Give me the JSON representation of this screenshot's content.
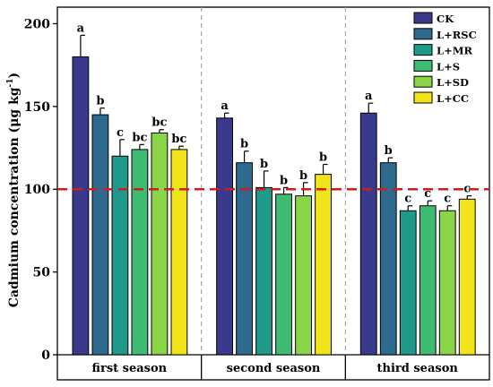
{
  "chart_data": {
    "type": "bar",
    "ylabel": "Cadmium concentration (μg kg",
    "ylabel_sup": "-1",
    "ylabel_close": ")",
    "ylim": [
      0,
      210
    ],
    "yticks": [
      0,
      50,
      100,
      150,
      200
    ],
    "threshold_line": 100,
    "groups": [
      "first season",
      "second season",
      "third season"
    ],
    "series": [
      {
        "name": "CK",
        "color": "#3a3a8c",
        "values": [
          180,
          143,
          146
        ],
        "errors": [
          13,
          3,
          6
        ],
        "letters": [
          "a",
          "a",
          "a"
        ]
      },
      {
        "name": "L+RSC",
        "color": "#2e6a8e",
        "values": [
          145,
          116,
          116
        ],
        "errors": [
          4,
          7,
          3
        ],
        "letters": [
          "b",
          "b",
          "b"
        ]
      },
      {
        "name": "L+MR",
        "color": "#1f9a8a",
        "values": [
          120,
          101,
          87
        ],
        "errors": [
          10,
          10,
          3
        ],
        "letters": [
          "c",
          "b",
          "c"
        ]
      },
      {
        "name": "L+S",
        "color": "#3fbc73",
        "values": [
          124,
          97,
          90
        ],
        "errors": [
          3,
          4,
          3
        ],
        "letters": [
          "bc",
          "b",
          "c"
        ]
      },
      {
        "name": "L+SD",
        "color": "#8ad547",
        "values": [
          134,
          96,
          87
        ],
        "errors": [
          2,
          8,
          3
        ],
        "letters": [
          "bc",
          "b",
          "c"
        ]
      },
      {
        "name": "L+CC",
        "color": "#f2e41a",
        "values": [
          124,
          109,
          94
        ],
        "errors": [
          2,
          6,
          2
        ],
        "letters": [
          "bc",
          "b",
          "c"
        ]
      }
    ],
    "legend_position": "top-right"
  }
}
